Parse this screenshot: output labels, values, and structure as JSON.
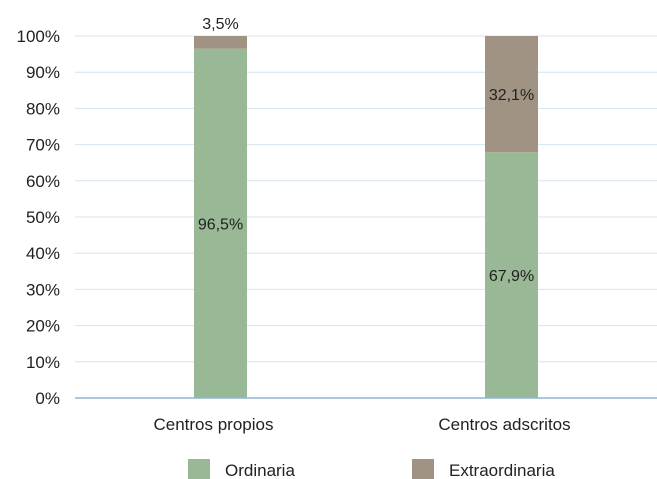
{
  "chart_data": {
    "type": "bar",
    "stacked": true,
    "categories": [
      "Centros propios",
      "Centros adscritos"
    ],
    "series": [
      {
        "name": "Ordinaria",
        "values": [
          96.5,
          67.9
        ],
        "labels": [
          "96,5%",
          "67,9%"
        ],
        "color": "#98b896"
      },
      {
        "name": "Extraordinaria",
        "values": [
          3.5,
          32.1
        ],
        "labels": [
          "3,5%",
          "32,1%"
        ],
        "color": "#a09383"
      }
    ],
    "ylim": [
      0,
      100
    ],
    "yticks": [
      0,
      10,
      20,
      30,
      40,
      50,
      60,
      70,
      80,
      90,
      100
    ],
    "ytick_labels": [
      "0%",
      "10%",
      "20%",
      "30%",
      "40%",
      "50%",
      "60%",
      "70%",
      "80%",
      "90%",
      "100%"
    ],
    "grid": true,
    "grid_color": "#d6e4ee",
    "axis_color": "#8fb5d6",
    "legend_position": "bottom",
    "title": "",
    "xlabel": "",
    "ylabel": ""
  }
}
